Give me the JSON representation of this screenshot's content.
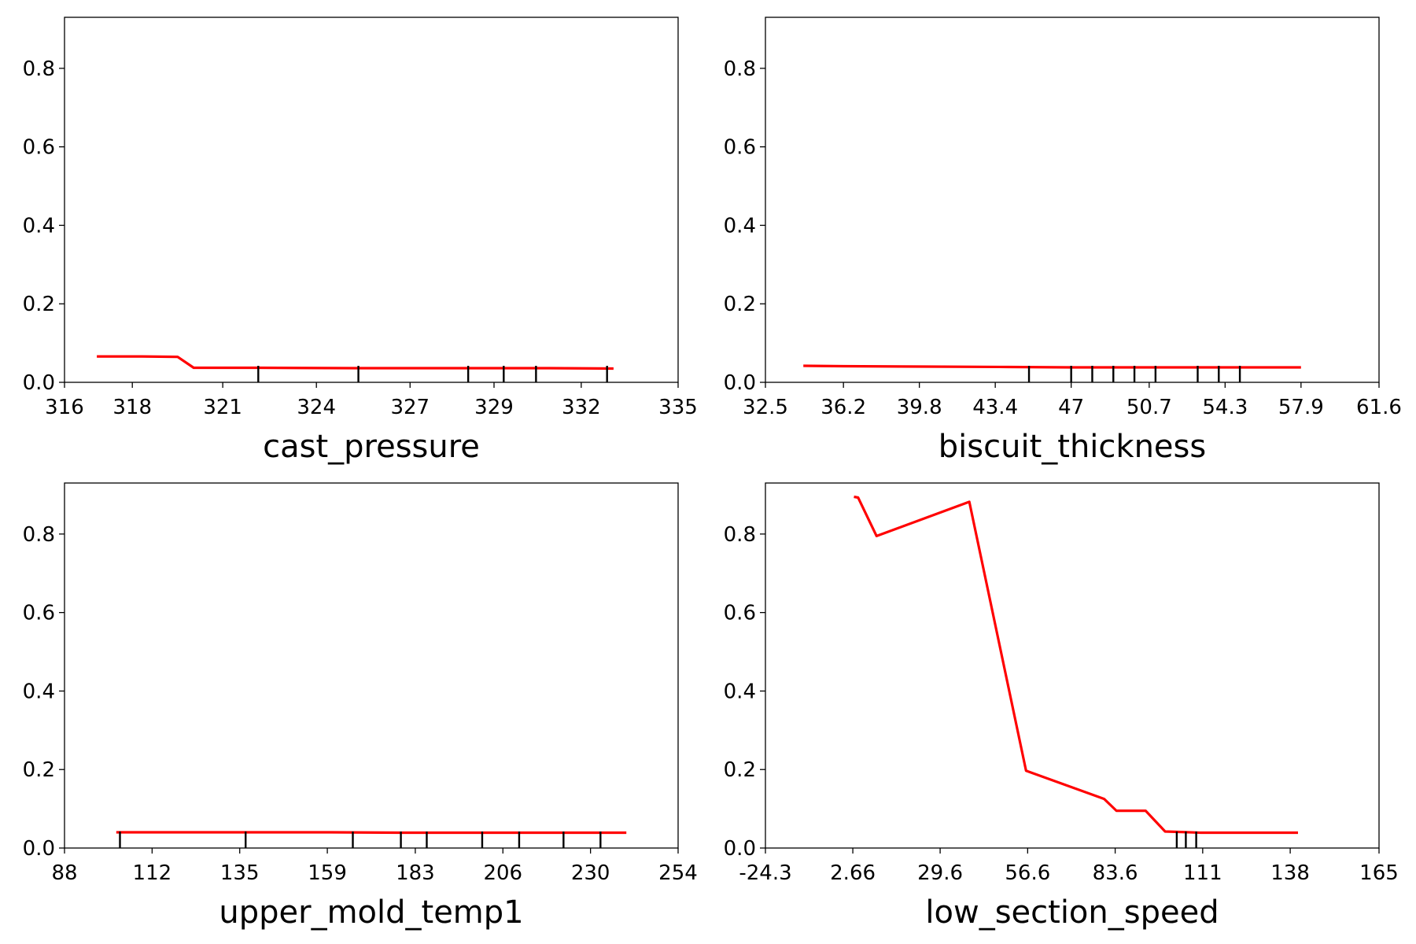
{
  "chart_data": [
    {
      "type": "line",
      "title": "",
      "xlabel": "cast_pressure",
      "ylabel": "",
      "xlim": [
        316,
        335
      ],
      "ylim": [
        0.0,
        0.93
      ],
      "xticks": [
        "316",
        "318",
        "321",
        "324",
        "327",
        "329",
        "332",
        "335"
      ],
      "xtick_values": [
        316,
        318.1,
        320.9,
        323.8,
        326.7,
        329.3,
        332.0,
        335
      ],
      "yticks": [
        "0.0",
        "0.2",
        "0.4",
        "0.6",
        "0.8"
      ],
      "ytick_values": [
        0.0,
        0.2,
        0.4,
        0.6,
        0.8
      ],
      "series": [
        {
          "color": "#ff0000",
          "x": [
            317.0,
            318.4,
            319.5,
            320.0,
            322.0,
            325.0,
            328.0,
            331.0,
            333.0
          ],
          "y": [
            0.066,
            0.066,
            0.065,
            0.037,
            0.037,
            0.036,
            0.036,
            0.036,
            0.035
          ]
        }
      ],
      "rug": [
        322.0,
        325.1,
        328.5,
        329.6,
        330.6,
        332.8
      ]
    },
    {
      "type": "line",
      "title": "",
      "xlabel": "biscuit_thickness",
      "ylabel": "",
      "xlim": [
        32.5,
        61.6
      ],
      "ylim": [
        0.0,
        0.93
      ],
      "xticks": [
        "32.5",
        "36.2",
        "39.8",
        "43.4",
        "47",
        "50.7",
        "54.3",
        "57.9",
        "61.6"
      ],
      "xtick_values": [
        32.5,
        36.2,
        39.8,
        43.4,
        47.0,
        50.7,
        54.3,
        57.9,
        61.6
      ],
      "yticks": [
        "0.0",
        "0.2",
        "0.4",
        "0.6",
        "0.8"
      ],
      "ytick_values": [
        0.0,
        0.2,
        0.4,
        0.6,
        0.8
      ],
      "series": [
        {
          "color": "#ff0000",
          "x": [
            34.3,
            36.2,
            40.0,
            44.0,
            47.0,
            50.0,
            54.0,
            57.9
          ],
          "y": [
            0.042,
            0.041,
            0.04,
            0.039,
            0.038,
            0.038,
            0.038,
            0.038
          ]
        }
      ],
      "rug": [
        45.0,
        47.0,
        48.0,
        49.0,
        50.0,
        51.0,
        53.0,
        54.0,
        55.0
      ]
    },
    {
      "type": "line",
      "title": "",
      "xlabel": "upper_mold_temp1",
      "ylabel": "",
      "xlim": [
        88,
        254
      ],
      "ylim": [
        0.0,
        0.93
      ],
      "xticks": [
        "88",
        "112",
        "135",
        "159",
        "183",
        "206",
        "230",
        "254"
      ],
      "xtick_values": [
        88,
        111.7,
        135.4,
        159.1,
        182.9,
        206.6,
        230.3,
        254
      ],
      "yticks": [
        "0.0",
        "0.2",
        "0.4",
        "0.6",
        "0.8"
      ],
      "ytick_values": [
        0.0,
        0.2,
        0.4,
        0.6,
        0.8
      ],
      "series": [
        {
          "color": "#ff0000",
          "x": [
            102,
            130,
            160,
            180,
            200,
            220,
            240
          ],
          "y": [
            0.04,
            0.04,
            0.04,
            0.039,
            0.039,
            0.039,
            0.039
          ]
        }
      ],
      "rug": [
        103,
        137,
        166,
        179,
        186,
        201,
        211,
        223,
        233
      ]
    },
    {
      "type": "line",
      "title": "",
      "xlabel": "low_section_speed",
      "ylabel": "",
      "xlim": [
        -24.3,
        165
      ],
      "ylim": [
        0.0,
        0.93
      ],
      "xticks": [
        "-24.3",
        "2.66",
        "29.6",
        "56.6",
        "83.6",
        "111",
        "138",
        "165"
      ],
      "xtick_values": [
        -24.3,
        2.66,
        29.6,
        56.6,
        83.6,
        110.6,
        137.6,
        165
      ],
      "yticks": [
        "0.0",
        "0.2",
        "0.4",
        "0.6",
        "0.8"
      ],
      "ytick_values": [
        0.0,
        0.2,
        0.4,
        0.6,
        0.8
      ],
      "series": [
        {
          "color": "#ff0000",
          "x": [
            3,
            4.3,
            10,
            38.6,
            56.1,
            80.2,
            84,
            93,
            99,
            103,
            110,
            140
          ],
          "y": [
            0.895,
            0.893,
            0.795,
            0.882,
            0.197,
            0.125,
            0.095,
            0.095,
            0.042,
            0.041,
            0.039,
            0.039
          ]
        }
      ],
      "rug": [
        102.6,
        105.4,
        108.6
      ]
    }
  ]
}
